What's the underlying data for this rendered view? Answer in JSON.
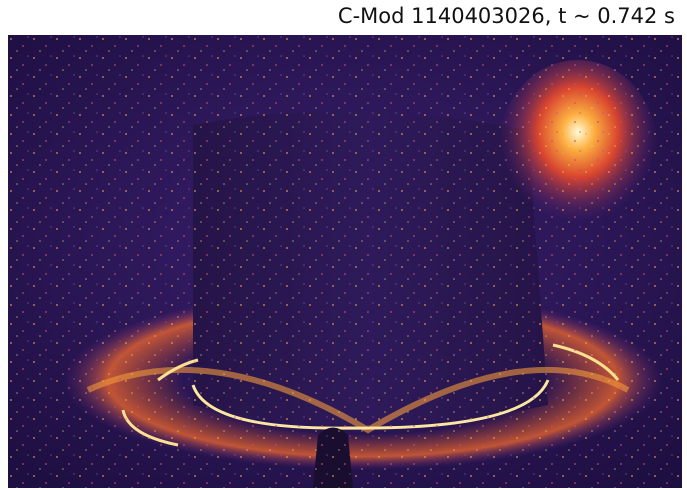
{
  "title": "C-Mod 1140403026, t ~ 0.742 s"
}
